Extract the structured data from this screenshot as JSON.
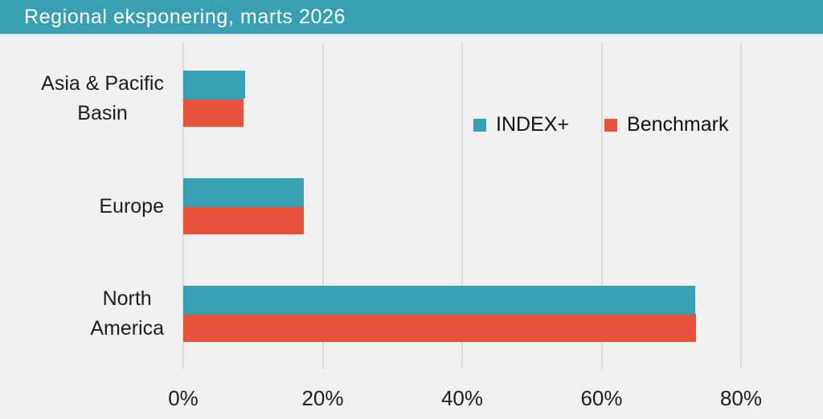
{
  "header": {
    "title": "Regional eksponering, marts 2026"
  },
  "chart_data": {
    "type": "bar",
    "orientation": "horizontal",
    "title": "Regional eksponering, marts 2026",
    "categories": [
      "Asia & Pacific Basin",
      "Europe",
      "North America"
    ],
    "category_lines": [
      [
        "Asia & Pacific",
        "Basin"
      ],
      [
        "Europe"
      ],
      [
        "North",
        "America"
      ]
    ],
    "series": [
      {
        "name": "INDEX+",
        "color": "#38a0b2",
        "values": [
          8.9,
          17.3,
          73.4
        ]
      },
      {
        "name": "Benchmark",
        "color": "#e7533f",
        "values": [
          8.7,
          17.3,
          73.6
        ]
      }
    ],
    "x_ticks": [
      "0%",
      "20%",
      "40%",
      "60%",
      "80%"
    ],
    "x_tick_values": [
      0,
      20,
      40,
      60,
      80
    ],
    "xlim": [
      0,
      91.8
    ],
    "xlabel": "",
    "ylabel": "",
    "grid": "vertical-gridlines-on",
    "legend_position": "inside-upper-right"
  },
  "colors": {
    "header_background": "#38a0b2",
    "header_text": "#ffffff",
    "page_background": "#f1f1f2",
    "gridline": "#dcdcdc",
    "label_text": "#1d1d1d",
    "series_index_plus": "#38a0b2",
    "series_benchmark": "#e7533f"
  }
}
